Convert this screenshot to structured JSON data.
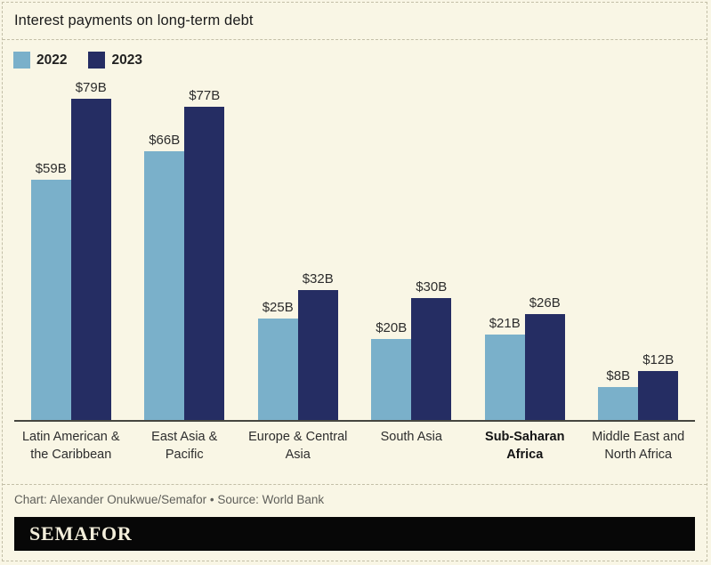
{
  "title": "Interest payments on long-term debt",
  "chart_data": {
    "type": "bar",
    "title": "Interest payments on long-term debt",
    "categories": [
      "Latin American & the Caribbean",
      "East Asia & Pacific",
      "Europe & Central Asia",
      "South Asia",
      "Sub-Saharan Africa",
      "Middle East and North Africa"
    ],
    "bold_category": "Sub-Saharan Africa",
    "series": [
      {
        "name": "2022",
        "color": "#7ab0ca",
        "values": [
          59,
          66,
          25,
          20,
          21,
          8
        ],
        "labels": [
          "$59B",
          "$66B",
          "$25B",
          "$20B",
          "$21B",
          "$8B"
        ]
      },
      {
        "name": "2023",
        "color": "#252d63",
        "values": [
          79,
          77,
          32,
          30,
          26,
          12
        ],
        "labels": [
          "$79B",
          "$77B",
          "$32B",
          "$30B",
          "$26B",
          "$12B"
        ]
      }
    ],
    "ylim": [
      0,
      80
    ],
    "grid": false,
    "legend_position": "top-left",
    "xlabel": "",
    "ylabel": "",
    "value_unit": "billions USD"
  },
  "footer": {
    "credit": "Chart: Alexander Onukwue/Semafor • Source: World Bank"
  },
  "brand": {
    "logo_text": "SEMAFOR",
    "bar_color": "#070707",
    "text_color": "#f3eedb"
  },
  "colors": {
    "background": "#f9f6e5",
    "border_dashed": "#c3bfa7",
    "axis_line": "#46463f",
    "series_2022": "#7ab0ca",
    "series_2023": "#252d63",
    "label_text": "#2d2d2d",
    "credit_text": "#5f5f5a"
  }
}
